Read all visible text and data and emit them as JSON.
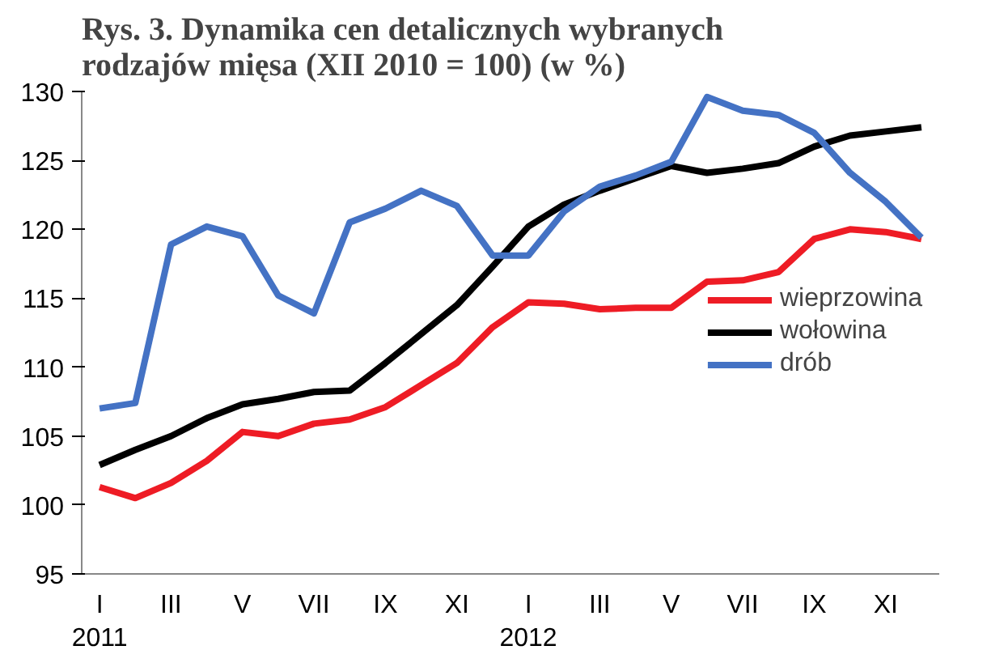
{
  "chart_data": {
    "type": "line",
    "title": "Rys. 3. Dynamika cen detalicznych wybranych\nrodzajów mięsa (XII 2010 = 100) (w %)",
    "categories": [
      "I\n2011",
      null,
      "III",
      null,
      "V",
      null,
      "VII",
      null,
      "IX",
      null,
      "XI",
      null,
      "I\n2012",
      null,
      "III",
      null,
      "V",
      null,
      "VII",
      null,
      "IX",
      null,
      "XI",
      null
    ],
    "series": [
      {
        "name": "wieprzowina",
        "color": "#ee1c25",
        "values": [
          101.3,
          100.5,
          101.6,
          103.2,
          105.3,
          105.0,
          105.9,
          106.2,
          107.1,
          108.7,
          110.3,
          112.9,
          114.7,
          114.6,
          114.2,
          114.3,
          114.3,
          116.2,
          116.3,
          116.9,
          119.3,
          120.0,
          119.8,
          119.3
        ]
      },
      {
        "name": "wołowina",
        "color": "#000000",
        "values": [
          102.9,
          104.0,
          105.0,
          106.3,
          107.3,
          107.7,
          108.2,
          108.3,
          110.3,
          112.4,
          114.5,
          117.3,
          120.2,
          121.8,
          122.8,
          123.7,
          124.6,
          124.1,
          124.4,
          124.8,
          126.0,
          126.8,
          127.1,
          127.4
        ]
      },
      {
        "name": "drób",
        "color": "#4472c4",
        "values": [
          107.0,
          107.4,
          118.9,
          120.2,
          119.5,
          115.2,
          113.9,
          120.5,
          121.5,
          122.8,
          121.7,
          118.1,
          118.1,
          121.3,
          123.1,
          123.9,
          124.9,
          129.6,
          128.6,
          128.3,
          127.0,
          124.1,
          122.0,
          119.4
        ]
      }
    ],
    "ylim": [
      95,
      130
    ],
    "yticks": [
      95,
      100,
      105,
      110,
      115,
      120,
      125,
      130
    ],
    "grid": false,
    "legend": "right",
    "line_style": "solid"
  }
}
